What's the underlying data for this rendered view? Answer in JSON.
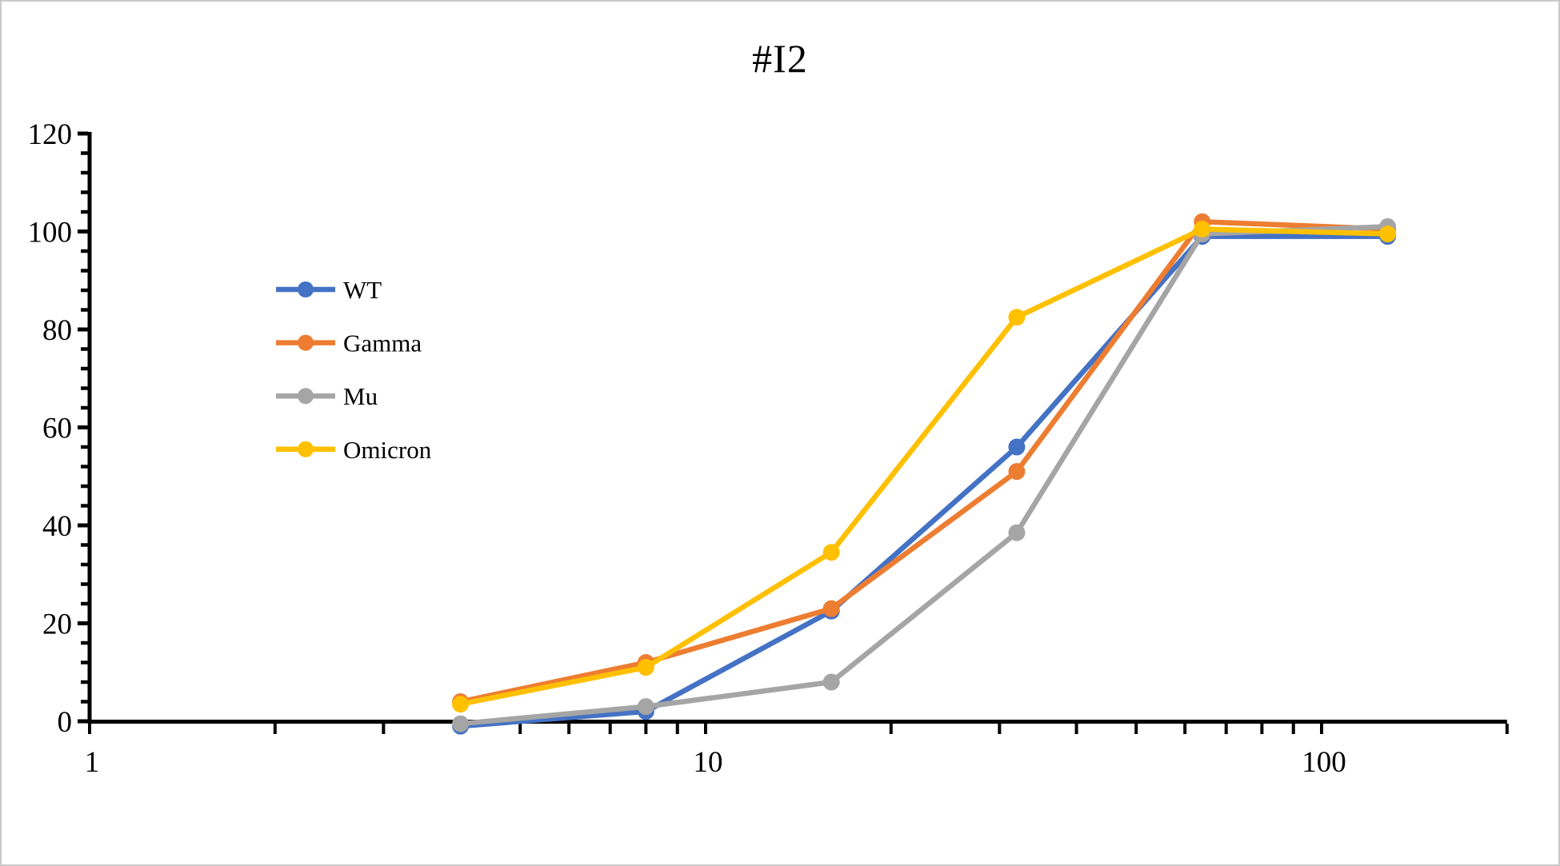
{
  "title": "#I2",
  "chart_data": {
    "type": "line",
    "title": "#I2",
    "x_scale": "log",
    "xlabel": "",
    "ylabel": "",
    "x": [
      4,
      8,
      16,
      32,
      64,
      128
    ],
    "series": [
      {
        "name": "WT",
        "color": "#4472C4",
        "values": [
          -1,
          2,
          22.5,
          56,
          99,
          99
        ]
      },
      {
        "name": "Gamma",
        "color": "#ED7D31",
        "values": [
          4,
          12,
          23,
          51,
          102,
          100.5
        ]
      },
      {
        "name": "Mu",
        "color": "#A5A5A5",
        "values": [
          -0.5,
          3,
          8,
          38.5,
          99.5,
          101
        ]
      },
      {
        "name": "Omicron",
        "color": "#FFC000",
        "values": [
          3.5,
          11,
          34.5,
          82.5,
          100.5,
          99.5
        ]
      }
    ],
    "x_axis": {
      "min": 1,
      "max": 200,
      "labeled_ticks": [
        1,
        10,
        100
      ],
      "minor_ticks": [
        2,
        3,
        4,
        5,
        6,
        7,
        8,
        9,
        20,
        30,
        40,
        50,
        60,
        70,
        80,
        90,
        200
      ]
    },
    "y_axis": {
      "min": 0,
      "max": 120,
      "labeled_ticks": [
        0,
        20,
        40,
        60,
        80,
        100,
        120
      ],
      "minor_step": 4
    },
    "legend": {
      "position": "upper-left"
    }
  },
  "colors": {
    "axis": "#000000",
    "text": "#000000",
    "background": "#ffffff",
    "frame_border": "#c9c9c9"
  }
}
